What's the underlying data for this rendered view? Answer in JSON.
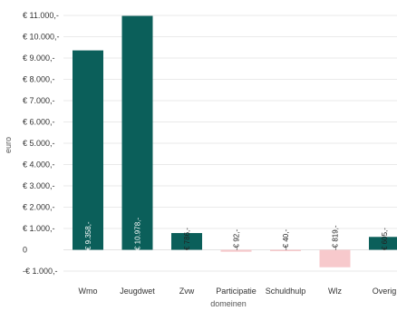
{
  "chart_data": {
    "type": "bar",
    "xlabel": "domeinen",
    "ylabel": "euro",
    "ylim": [
      -1000,
      11000
    ],
    "grid": true,
    "yticks": [
      -1000,
      0,
      1000,
      2000,
      3000,
      4000,
      5000,
      6000,
      7000,
      8000,
      9000,
      10000,
      11000
    ],
    "ytick_labels": [
      "-€ 1.000,-",
      "0",
      "€ 1.000,-",
      "€ 2.000,-",
      "€ 3.000,-",
      "€ 4.000,-",
      "€ 5.000,-",
      "€ 6.000,-",
      "€ 7.000,-",
      "€ 8.000,-",
      "€ 9.000,-",
      "€ 10.000,-",
      "€ 11.000,-"
    ],
    "categories": [
      "Wmo",
      "Jeugdwet",
      "Zvw",
      "Participatie",
      "Schuldhulp",
      "Wlz",
      "Overig"
    ],
    "values": [
      9358,
      10978,
      786,
      -92,
      -40,
      -819,
      605
    ],
    "data_labels": [
      "€ 9.358,-",
      "€ 10.978,-",
      "€ 786,-",
      "-€ 92,-",
      "-€ 40,-",
      "-€ 819,-",
      "€ 605,-"
    ],
    "colors": {
      "positive": "#0b5f5a",
      "negative": "#f7c9cc",
      "grid": "#e3e3e3"
    }
  }
}
